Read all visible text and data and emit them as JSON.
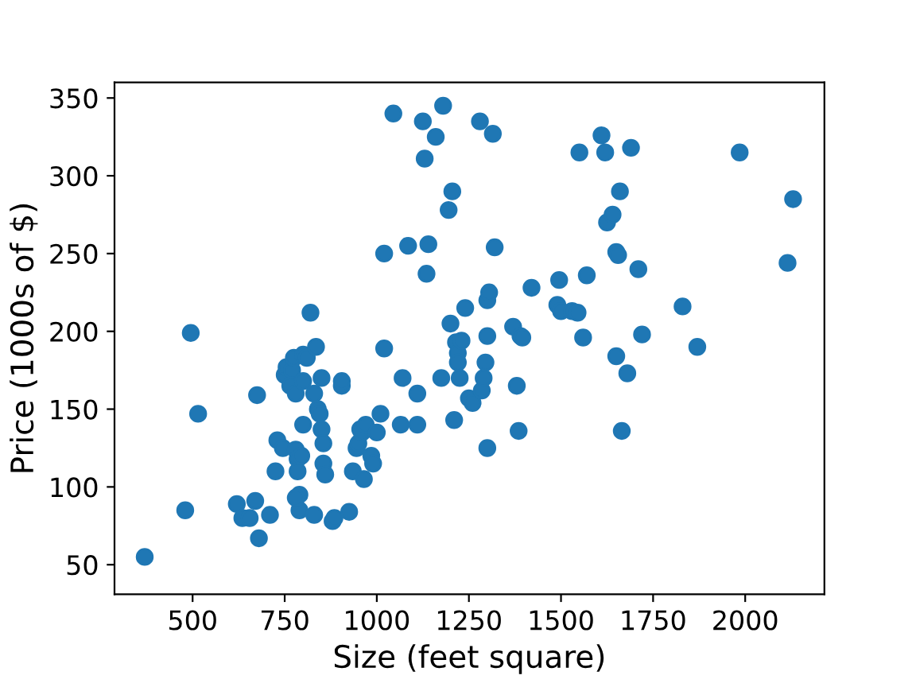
{
  "chart_data": {
    "type": "scatter",
    "xlabel": "Size (feet square)",
    "ylabel": "Price (1000s of $)",
    "x": [
      370,
      480,
      495,
      515,
      620,
      635,
      655,
      670,
      675,
      680,
      710,
      725,
      730,
      745,
      750,
      755,
      765,
      770,
      775,
      780,
      780,
      785,
      785,
      790,
      790,
      780,
      795,
      800,
      800,
      800,
      810,
      820,
      830,
      830,
      835,
      840,
      845,
      850,
      850,
      855,
      855,
      860,
      880,
      885,
      905,
      905,
      925,
      935,
      945,
      950,
      955,
      960,
      965,
      970,
      985,
      990,
      1000,
      1010,
      1020,
      1020,
      1045,
      1065,
      1070,
      1085,
      1110,
      1110,
      1125,
      1130,
      1135,
      1140,
      1160,
      1175,
      1180,
      1195,
      1205,
      1200,
      1210,
      1215,
      1220,
      1220,
      1225,
      1230,
      1240,
      1250,
      1260,
      1280,
      1285,
      1290,
      1295,
      1300,
      1300,
      1300,
      1305,
      1315,
      1320,
      1370,
      1380,
      1385,
      1390,
      1395,
      1420,
      1490,
      1495,
      1500,
      1530,
      1545,
      1550,
      1560,
      1570,
      1610,
      1620,
      1625,
      1640,
      1650,
      1655,
      1650,
      1660,
      1665,
      1680,
      1690,
      1710,
      1720,
      1830,
      1870,
      1985,
      2115,
      2130
    ],
    "series": [
      {
        "color": "#1f77b4",
        "values": [
          55,
          85,
          199,
          147,
          89,
          80,
          80,
          91,
          159,
          67,
          82,
          110,
          130,
          125,
          172,
          177,
          165,
          175,
          183,
          160,
          124,
          118,
          110,
          95,
          85,
          93,
          120,
          185,
          168,
          140,
          183,
          212,
          160,
          82,
          190,
          150,
          147,
          137,
          170,
          128,
          115,
          108,
          78,
          80,
          165,
          168,
          84,
          110,
          125,
          128,
          137,
          135,
          105,
          140,
          120,
          115,
          135,
          147,
          189,
          250,
          340,
          140,
          170,
          255,
          160,
          140,
          335,
          311,
          237,
          256,
          325,
          170,
          345,
          278,
          290,
          205,
          143,
          193,
          186,
          180,
          170,
          194,
          215,
          157,
          154,
          335,
          162,
          170,
          180,
          125,
          197,
          220,
          225,
          327,
          254,
          203,
          165,
          136,
          197,
          196,
          228,
          217,
          233,
          213,
          213,
          212,
          315,
          196,
          236,
          326,
          315,
          270,
          275,
          251,
          249,
          184,
          290,
          136,
          173,
          318,
          240,
          198,
          216,
          190,
          315,
          244,
          285
        ]
      }
    ],
    "xlim": [
      288,
      2215
    ],
    "ylim": [
      31,
      360
    ],
    "xticks": [
      500,
      750,
      1000,
      1250,
      1500,
      1750,
      2000
    ],
    "yticks": [
      50,
      100,
      150,
      200,
      250,
      300,
      350
    ],
    "marker": "circle",
    "grid": false,
    "legend": false
  }
}
